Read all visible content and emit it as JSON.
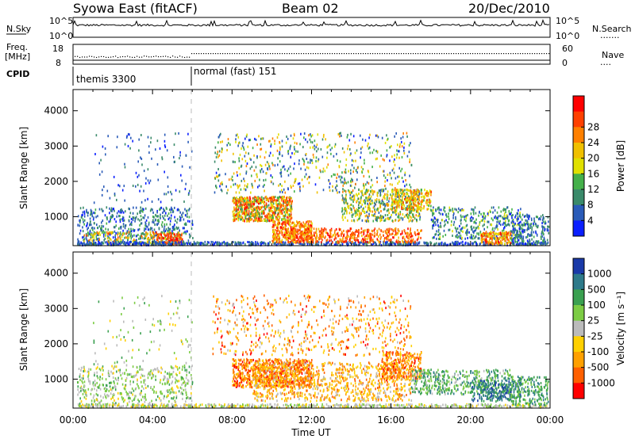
{
  "header": {
    "station": "Syowa East (fitACF)",
    "beam": "Beam 02",
    "date": "20/Dec/2010"
  },
  "panels": {
    "nsky": {
      "left_label": "N.Sky",
      "left_ticks": [
        "10^5",
        "10^0"
      ],
      "right_ticks": [
        "10^5",
        "10^0"
      ],
      "right_label": "N.Search",
      "right_dots": "......."
    },
    "freq": {
      "left_label_1": "Freq.",
      "left_label_2": "[MHz]",
      "left_ticks": [
        "18",
        "8"
      ],
      "right_ticks": [
        "60",
        "0"
      ],
      "right_label": "Nave",
      "right_dots": "...."
    },
    "cpid": {
      "label": "CPID",
      "modes": [
        {
          "name": "themis 3300",
          "start_hour": 0
        },
        {
          "name": "normal (fast) 151",
          "start_hour": 6
        }
      ]
    }
  },
  "chart_data": [
    {
      "type": "heatmap",
      "title": "",
      "ylabel": "Slant Range [km]",
      "xlabel": "",
      "x_range_hours": [
        0,
        24
      ],
      "ylim": [
        180,
        4600
      ],
      "y_ticks": [
        "1000",
        "2000",
        "3000",
        "4000"
      ],
      "x_ticks": [
        "00:00",
        "04:00",
        "08:00",
        "12:00",
        "16:00",
        "20:00",
        "00:00"
      ],
      "colorbar": {
        "label": "Power [dB]",
        "ticks": [
          "4",
          "8",
          "12",
          "16",
          "20",
          "24",
          "28"
        ],
        "colors": [
          "#0a1fff",
          "#2a5bb8",
          "#3a8a6a",
          "#44b04a",
          "#e0e000",
          "#f0c000",
          "#ff8000",
          "#ff4000",
          "#ff0000"
        ]
      }
    },
    {
      "type": "heatmap",
      "title": "",
      "ylabel": "Slant Range [km]",
      "xlabel": "Time UT",
      "x_range_hours": [
        0,
        24
      ],
      "ylim": [
        180,
        4600
      ],
      "y_ticks": [
        "1000",
        "2000",
        "3000",
        "4000"
      ],
      "x_ticks": [
        "00:00",
        "04:00",
        "08:00",
        "12:00",
        "16:00",
        "20:00",
        "00:00"
      ],
      "colorbar": {
        "label": "Velocity [m s⁻¹]",
        "ticks": [
          "1000",
          "500",
          "100",
          "25",
          "-25",
          "-100",
          "-500",
          "-1000"
        ],
        "colors": [
          "#1a3aa8",
          "#2e7a8a",
          "#3aa050",
          "#7ccc44",
          "#bbbbbb",
          "#ffd000",
          "#ffa000",
          "#ff6000",
          "#ff0000"
        ]
      }
    }
  ]
}
